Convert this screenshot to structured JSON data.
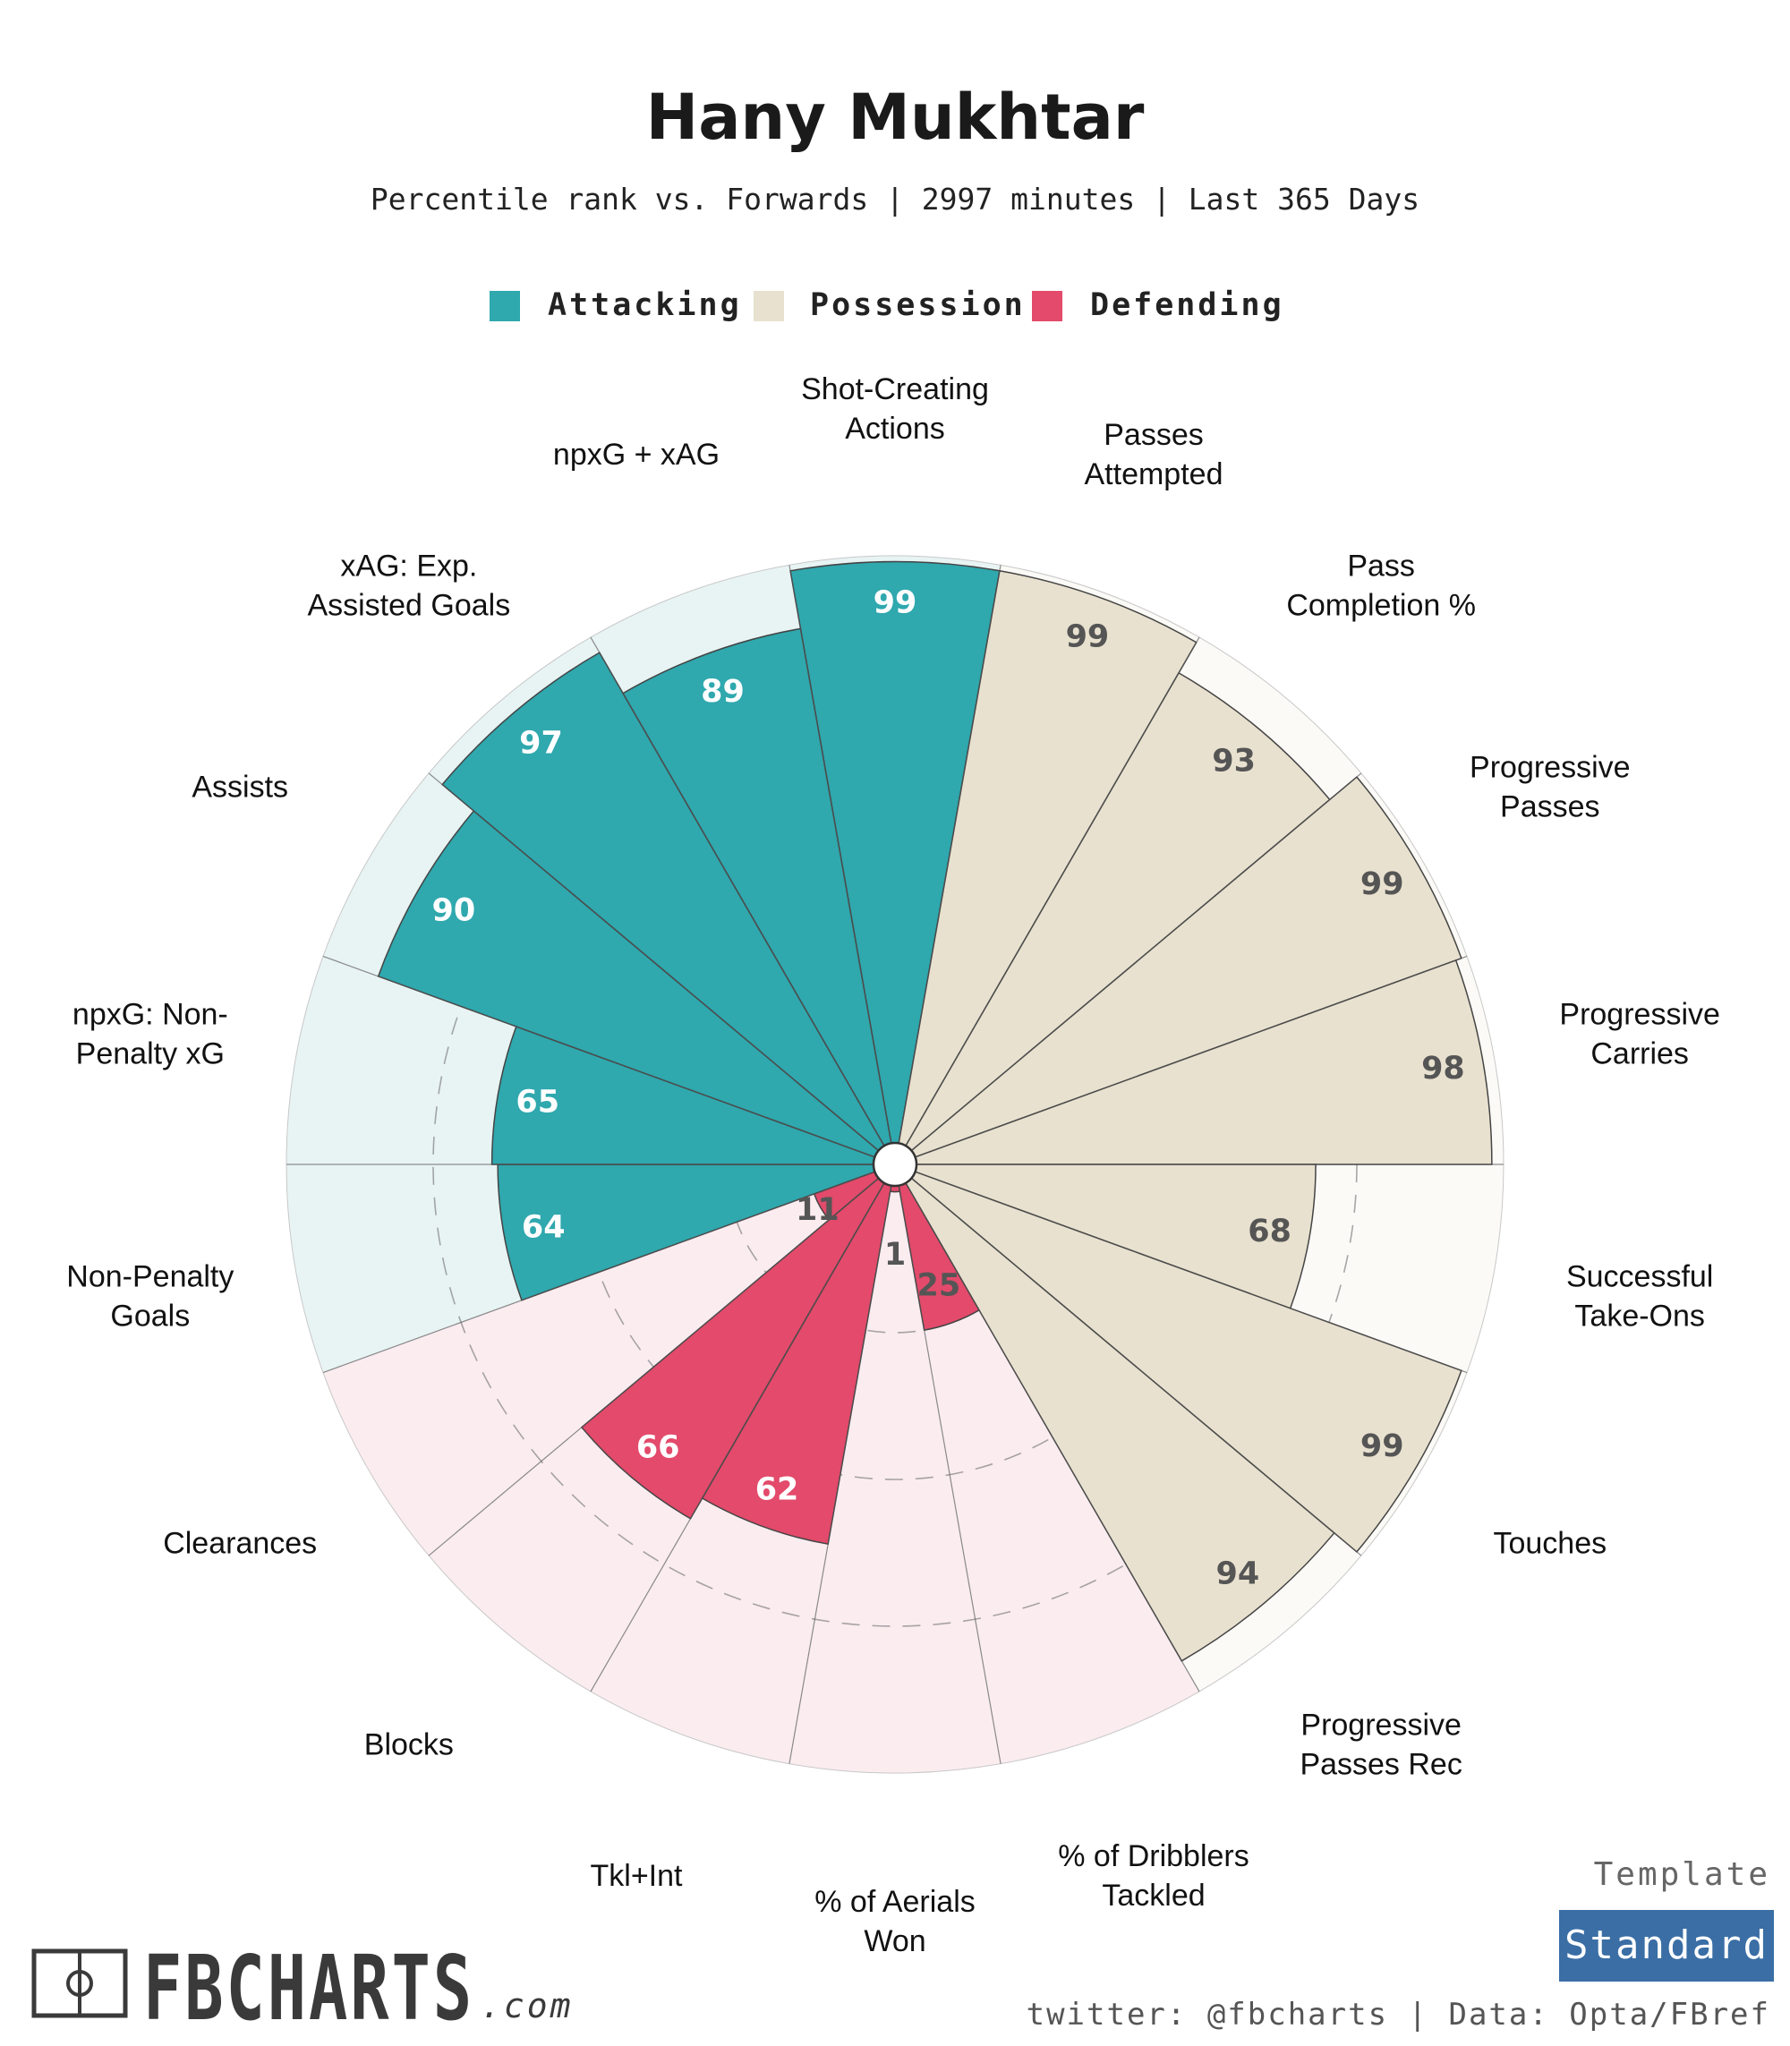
{
  "header": {
    "title": "Hany Mukhtar",
    "subtitle": "Percentile rank vs. Forwards | 2997 minutes | Last 365 Days"
  },
  "legend": [
    {
      "label": "Attacking",
      "color": "#2fa8ae"
    },
    {
      "label": "Possession",
      "color": "#e8e1cf"
    },
    {
      "label": "Defending",
      "color": "#e34a6b"
    }
  ],
  "chart_data": {
    "type": "polar-bar",
    "title": "Hany Mukhtar",
    "subtitle": "Percentile rank vs. Forwards | 2997 minutes | Last 365 Days",
    "rlim": [
      0,
      100
    ],
    "gridlines": [
      25,
      50,
      75
    ],
    "groups": {
      "Attacking": {
        "color": "#2fa8ae",
        "background": "#e8f4f4",
        "label_color": "#ffffff"
      },
      "Possession": {
        "color": "#e8e1cf",
        "background": "#fbfaf7",
        "label_color": "#555555"
      },
      "Defending": {
        "color": "#e34a6b",
        "background": "#fbecf0",
        "label_color": "#555555",
        "label_color_high": "#ffffff"
      }
    },
    "stats": [
      {
        "label": "Shot-Creating\nActions",
        "value": 99,
        "group": "Attacking"
      },
      {
        "label": "Passes\nAttempted",
        "value": 99,
        "group": "Possession"
      },
      {
        "label": "Pass\nCompletion %",
        "value": 93,
        "group": "Possession"
      },
      {
        "label": "Progressive\nPasses",
        "value": 99,
        "group": "Possession"
      },
      {
        "label": "Progressive\nCarries",
        "value": 98,
        "group": "Possession"
      },
      {
        "label": "Successful\nTake-Ons",
        "value": 68,
        "group": "Possession"
      },
      {
        "label": "Touches",
        "value": 99,
        "group": "Possession"
      },
      {
        "label": "Progressive\nPasses Rec",
        "value": 94,
        "group": "Possession"
      },
      {
        "label": "% of Dribblers\nTackled",
        "value": 25,
        "group": "Defending"
      },
      {
        "label": "% of Aerials\nWon",
        "value": 1,
        "group": "Defending"
      },
      {
        "label": "Tkl+Int",
        "value": 62,
        "group": "Defending"
      },
      {
        "label": "Blocks",
        "value": 66,
        "group": "Defending"
      },
      {
        "label": "Clearances",
        "value": 11,
        "group": "Defending"
      },
      {
        "label": "Non-Penalty\nGoals",
        "value": 64,
        "group": "Attacking"
      },
      {
        "label": "npxG: Non-\nPenalty xG",
        "value": 65,
        "group": "Attacking"
      },
      {
        "label": "Assists",
        "value": 90,
        "group": "Attacking"
      },
      {
        "label": "xAG: Exp.\nAssisted Goals",
        "value": 97,
        "group": "Attacking"
      },
      {
        "label": "npxG + xAG",
        "value": 89,
        "group": "Attacking"
      }
    ]
  },
  "footer": {
    "logo": "FBCHARTS",
    "logo_suffix": ".com",
    "credit": "twitter: @fbcharts | Data: Opta/FBref",
    "template_label": "Template",
    "template_name": "Standard",
    "badge_color": "#3a6ea5"
  }
}
